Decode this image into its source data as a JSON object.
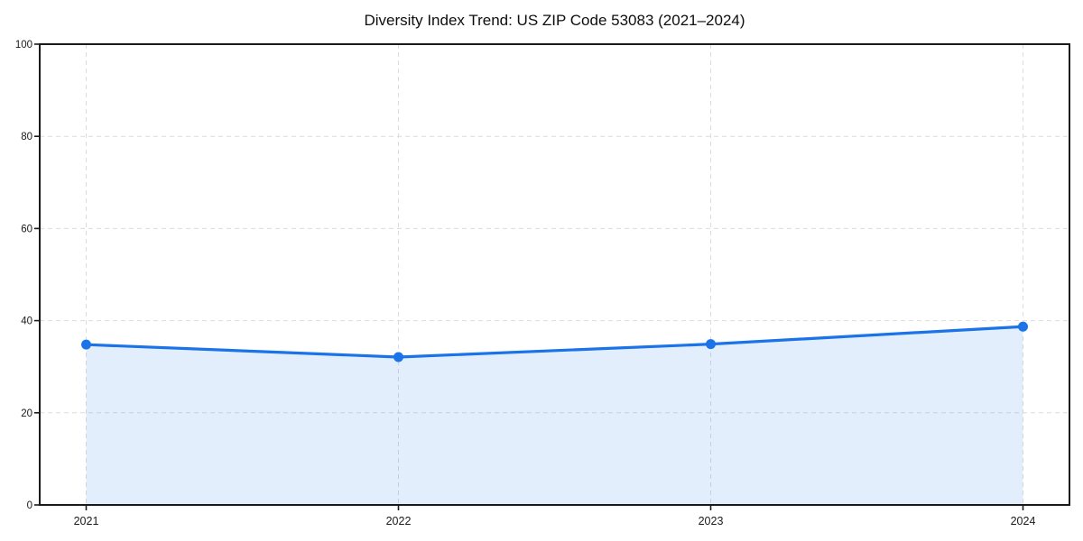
{
  "title": "Diversity Index Trend: US ZIP Code 53083 (2021–2024)",
  "colors": {
    "line": "#1a73e8",
    "marker": "#1a73e8",
    "area_fill": "rgba(26,115,232,0.12)",
    "grid": "#dcdcdc",
    "axis": "#1a1a1a",
    "tick_label": "#1a1a1a",
    "background": "#ffffff"
  },
  "chart_data": {
    "type": "line",
    "title": "Diversity Index Trend: US ZIP Code 53083 (2021–2024)",
    "categories": [
      "2021",
      "2022",
      "2023",
      "2024"
    ],
    "series": [
      {
        "name": "Diversity Index",
        "values": [
          34.8,
          32.1,
          34.9,
          38.7
        ]
      }
    ],
    "xlabel": "",
    "ylabel": "",
    "ylim": [
      0,
      100
    ],
    "yticks": [
      0,
      20,
      40,
      60,
      80,
      100
    ],
    "grid": true,
    "grid_style": "dashed",
    "legend_position": "none",
    "marker": "circle",
    "area_fill": true
  }
}
